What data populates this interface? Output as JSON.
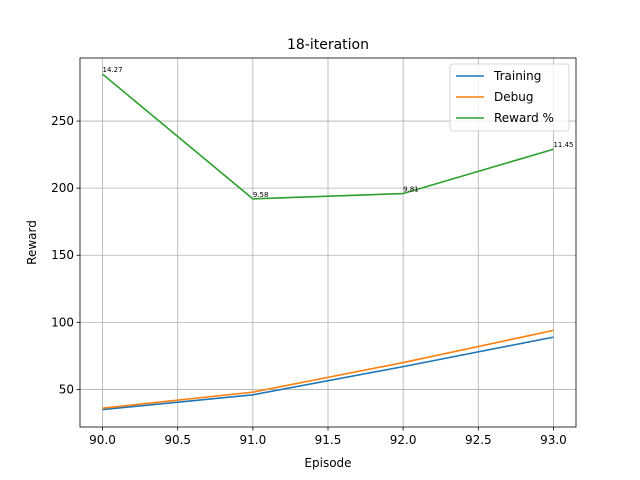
{
  "chart_data": {
    "type": "line",
    "title": "18-iteration",
    "xlabel": "Episode",
    "ylabel": "Reward",
    "x": [
      90,
      91,
      92,
      93
    ],
    "xlim": [
      89.85,
      93.15
    ],
    "ylim": [
      22,
      297
    ],
    "xticks": [
      90.0,
      90.5,
      91.0,
      91.5,
      92.0,
      92.5,
      93.0
    ],
    "xtick_labels": [
      "90.0",
      "90.5",
      "91.0",
      "91.5",
      "92.0",
      "92.5",
      "93.0"
    ],
    "yticks": [
      50,
      100,
      150,
      200,
      250
    ],
    "ytick_labels": [
      "50",
      "100",
      "150",
      "200",
      "250"
    ],
    "grid": true,
    "legend_position": "top-right",
    "series": [
      {
        "name": "Training",
        "color": "#1f77b4",
        "values": [
          35,
          46,
          67,
          89
        ]
      },
      {
        "name": "Debug",
        "color": "#ff7f0e",
        "values": [
          36,
          48,
          70,
          94
        ]
      },
      {
        "name": "Reward %",
        "color": "#2ca02c",
        "values": [
          285,
          192,
          196,
          229
        ]
      }
    ],
    "annotations": [
      {
        "x": 90,
        "y": 285,
        "text": "14.27"
      },
      {
        "x": 91,
        "y": 192,
        "text": "9.58"
      },
      {
        "x": 92,
        "y": 196,
        "text": "9.81"
      },
      {
        "x": 93,
        "y": 229,
        "text": "11.45"
      }
    ]
  }
}
